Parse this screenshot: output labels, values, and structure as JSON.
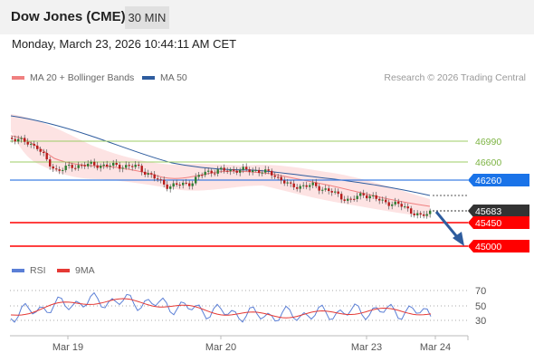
{
  "header": {
    "title": "Dow Jones (CME)",
    "timeframe": "30 MIN",
    "datetime": "Monday, March 23, 2026 10:44:11 AM CET"
  },
  "legend": {
    "items": [
      {
        "label": "MA 20 + Bollinger Bands",
        "color": "#f08080"
      },
      {
        "label": "MA 50",
        "color": "#2e5c9e"
      }
    ],
    "credit": "Research © 2026 Trading Central"
  },
  "colors": {
    "green_level": "#9ccc65",
    "blue_level": "#3f7fe3",
    "red_level": "#ff0000",
    "current_price": "#333333",
    "arrow": "#2e5c9e",
    "candle_up": "#2e7d32",
    "candle_down": "#b71c1c",
    "band_fill": "#fde3e3"
  },
  "levels": [
    {
      "label": "46990",
      "type": "resistance-green"
    },
    {
      "label": "46600",
      "type": "resistance-green"
    },
    {
      "label": "46260",
      "type": "pivot-blue"
    },
    {
      "label": "45683",
      "type": "current-price"
    },
    {
      "label": "45450",
      "type": "support-red"
    },
    {
      "label": "45000",
      "type": "support-red"
    }
  ],
  "rsi": {
    "legend": [
      {
        "label": "RSI",
        "color": "#5b7fd6"
      },
      {
        "label": "9MA",
        "color": "#e53935"
      }
    ],
    "ticks": [
      "70",
      "50",
      "30"
    ]
  },
  "xaxis": {
    "labels": [
      "Mar 19",
      "Mar 20",
      "Mar 23",
      "Mar 24"
    ]
  }
}
